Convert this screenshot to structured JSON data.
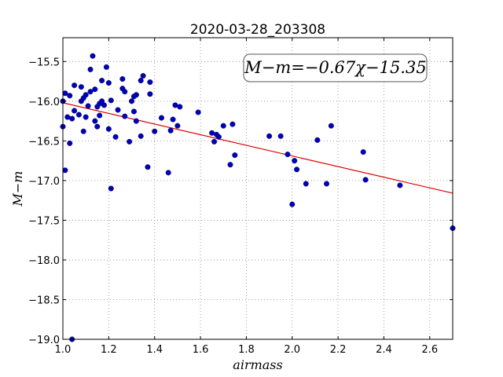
{
  "chart_data": {
    "type": "scatter",
    "title": "2020-03-28_203308",
    "xlabel": "airmass",
    "ylabel": "M−m",
    "xlim": [
      1.0,
      2.7
    ],
    "ylim": [
      -19.0,
      -15.2
    ],
    "xticks": [
      1.0,
      1.2,
      1.4,
      1.6,
      1.8,
      2.0,
      2.2,
      2.4,
      2.6
    ],
    "xtick_labels": [
      "1.0",
      "1.2",
      "1.4",
      "1.6",
      "1.8",
      "2.0",
      "2.2",
      "2.4",
      "2.6"
    ],
    "yticks": [
      -15.5,
      -16.0,
      -16.5,
      -17.0,
      -17.5,
      -18.0,
      -18.5,
      -19.0
    ],
    "ytick_labels": [
      "−15.5",
      "−16.0",
      "−16.5",
      "−17.0",
      "−17.5",
      "−18.0",
      "−18.5",
      "−19.0"
    ],
    "grid": true,
    "annotation": "M−m=−0.67χ−15.35",
    "fit": {
      "slope": -0.67,
      "intercept": -15.35,
      "color": "#dd0000"
    },
    "marker_color": "#0000bb",
    "points": [
      [
        1.0,
        -16.0
      ],
      [
        1.0,
        -16.32
      ],
      [
        1.01,
        -16.87
      ],
      [
        1.01,
        -15.9
      ],
      [
        1.02,
        -16.2
      ],
      [
        1.03,
        -15.93
      ],
      [
        1.03,
        -16.53
      ],
      [
        1.04,
        -16.22
      ],
      [
        1.04,
        -19.0
      ],
      [
        1.05,
        -15.8
      ],
      [
        1.05,
        -16.12
      ],
      [
        1.07,
        -16.17
      ],
      [
        1.08,
        -16.0
      ],
      [
        1.08,
        -15.82
      ],
      [
        1.09,
        -15.96
      ],
      [
        1.09,
        -16.38
      ],
      [
        1.1,
        -16.2
      ],
      [
        1.1,
        -15.92
      ],
      [
        1.11,
        -16.06
      ],
      [
        1.12,
        -15.6
      ],
      [
        1.12,
        -15.88
      ],
      [
        1.13,
        -15.43
      ],
      [
        1.14,
        -15.85
      ],
      [
        1.14,
        -16.25
      ],
      [
        1.15,
        -16.32
      ],
      [
        1.15,
        -16.07
      ],
      [
        1.16,
        -16.18
      ],
      [
        1.16,
        -16.03
      ],
      [
        1.17,
        -15.74
      ],
      [
        1.17,
        -16.0
      ],
      [
        1.18,
        -16.05
      ],
      [
        1.19,
        -15.57
      ],
      [
        1.2,
        -15.77
      ],
      [
        1.2,
        -16.35
      ],
      [
        1.21,
        -17.1
      ],
      [
        1.21,
        -15.99
      ],
      [
        1.23,
        -16.45
      ],
      [
        1.24,
        -16.11
      ],
      [
        1.26,
        -15.72
      ],
      [
        1.26,
        -15.84
      ],
      [
        1.27,
        -15.88
      ],
      [
        1.27,
        -16.19
      ],
      [
        1.29,
        -16.51
      ],
      [
        1.3,
        -16.0
      ],
      [
        1.31,
        -15.94
      ],
      [
        1.31,
        -16.13
      ],
      [
        1.32,
        -16.25
      ],
      [
        1.32,
        -15.92
      ],
      [
        1.34,
        -16.44
      ],
      [
        1.34,
        -15.74
      ],
      [
        1.35,
        -15.68
      ],
      [
        1.37,
        -16.83
      ],
      [
        1.38,
        -15.91
      ],
      [
        1.38,
        -15.76
      ],
      [
        1.4,
        -16.38
      ],
      [
        1.43,
        -16.21
      ],
      [
        1.46,
        -16.9
      ],
      [
        1.47,
        -16.37
      ],
      [
        1.48,
        -16.23
      ],
      [
        1.49,
        -16.05
      ],
      [
        1.5,
        -16.31
      ],
      [
        1.51,
        -16.07
      ],
      [
        1.59,
        -16.14
      ],
      [
        1.65,
        -16.4
      ],
      [
        1.66,
        -16.51
      ],
      [
        1.67,
        -16.42
      ],
      [
        1.68,
        -16.45
      ],
      [
        1.7,
        -16.31
      ],
      [
        1.73,
        -16.8
      ],
      [
        1.74,
        -16.29
      ],
      [
        1.75,
        -16.68
      ],
      [
        1.9,
        -16.44
      ],
      [
        1.95,
        -16.44
      ],
      [
        1.98,
        -16.67
      ],
      [
        2.0,
        -17.3
      ],
      [
        2.01,
        -16.75
      ],
      [
        2.02,
        -16.86
      ],
      [
        2.06,
        -17.04
      ],
      [
        2.11,
        -16.49
      ],
      [
        2.15,
        -17.04
      ],
      [
        2.17,
        -16.31
      ],
      [
        2.31,
        -16.64
      ],
      [
        2.32,
        -16.99
      ],
      [
        2.47,
        -17.06
      ],
      [
        2.7,
        -17.6
      ]
    ]
  }
}
